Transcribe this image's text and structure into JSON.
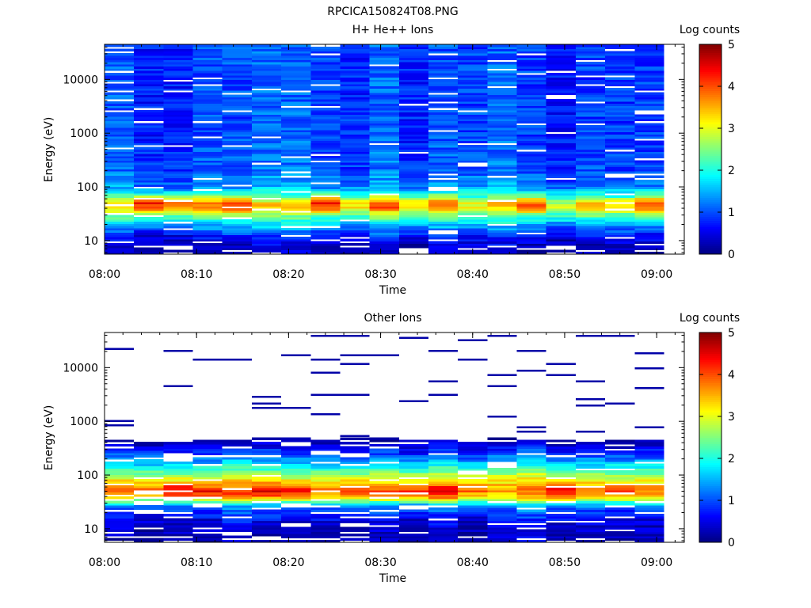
{
  "figure_title": "RPCICA150824T08.PNG",
  "chart_data": [
    {
      "type": "heatmap",
      "title": "H+ He++ Ions",
      "xlabel": "Time",
      "ylabel": "Energy (eV)",
      "x_ticks": [
        "08:00",
        "08:10",
        "08:20",
        "08:30",
        "08:40",
        "08:50",
        "09:00"
      ],
      "x_range": [
        "08:00",
        "09:03"
      ],
      "y_ticks": [
        "10",
        "100",
        "1000",
        "10000"
      ],
      "y_scale": "log",
      "y_range": [
        5.6,
        45000
      ],
      "colorbar_label": "Log counts",
      "colorbar_ticks": [
        "0",
        "1",
        "2",
        "3",
        "4",
        "5"
      ],
      "colorbar_range": [
        0,
        5
      ],
      "colormap": "jet",
      "time_bin_minutes": 3.2,
      "n_time_bins": 19,
      "n_energy_bins": 96,
      "blank_columns_after": "09:00",
      "profile": {
        "log_counts_at_energy_eV": [
          [
            7,
            0.2
          ],
          [
            12,
            0.6
          ],
          [
            20,
            1.5
          ],
          [
            30,
            2.4
          ],
          [
            40,
            3.6
          ],
          [
            50,
            3.9
          ],
          [
            65,
            2.6
          ],
          [
            80,
            1.9
          ],
          [
            100,
            1.3
          ],
          [
            200,
            1.0
          ],
          [
            1000,
            0.9
          ],
          [
            10000,
            0.9
          ],
          [
            45000,
            0.9
          ]
        ],
        "peak_energy_eV": 50,
        "peak_log_counts_range": [
          2.8,
          4.5
        ],
        "gap_probability": 0.07
      }
    },
    {
      "type": "heatmap",
      "title": "Other Ions",
      "xlabel": "Time",
      "ylabel": "Energy (eV)",
      "x_ticks": [
        "08:00",
        "08:10",
        "08:20",
        "08:30",
        "08:40",
        "08:50",
        "09:00"
      ],
      "x_range": [
        "08:00",
        "09:03"
      ],
      "y_ticks": [
        "10",
        "100",
        "1000",
        "10000"
      ],
      "y_scale": "log",
      "y_range": [
        5.6,
        45000
      ],
      "colorbar_label": "Log counts",
      "colorbar_ticks": [
        "0",
        "1",
        "2",
        "3",
        "4",
        "5"
      ],
      "colorbar_range": [
        0,
        5
      ],
      "colormap": "jet",
      "time_bin_minutes": 3.2,
      "n_time_bins": 19,
      "n_energy_bins": 96,
      "blank_columns_after": "09:00",
      "profile": {
        "log_counts_at_energy_eV": [
          [
            7,
            0.3
          ],
          [
            12,
            0.5
          ],
          [
            18,
            0.8
          ],
          [
            25,
            1.2
          ],
          [
            30,
            2.0
          ],
          [
            40,
            3.5
          ],
          [
            50,
            4.0
          ],
          [
            70,
            3.5
          ],
          [
            100,
            2.8
          ],
          [
            150,
            1.9
          ],
          [
            250,
            1.0
          ],
          [
            400,
            0.4
          ],
          [
            500,
            0.0
          ]
        ],
        "peak_energy_eV": 50,
        "peak_log_counts_range": [
          3.6,
          4.9
        ],
        "gap_probability": 0.15,
        "sparse_lines_above_eV": 500,
        "sparse_line_log_counts": 0.2
      }
    }
  ]
}
